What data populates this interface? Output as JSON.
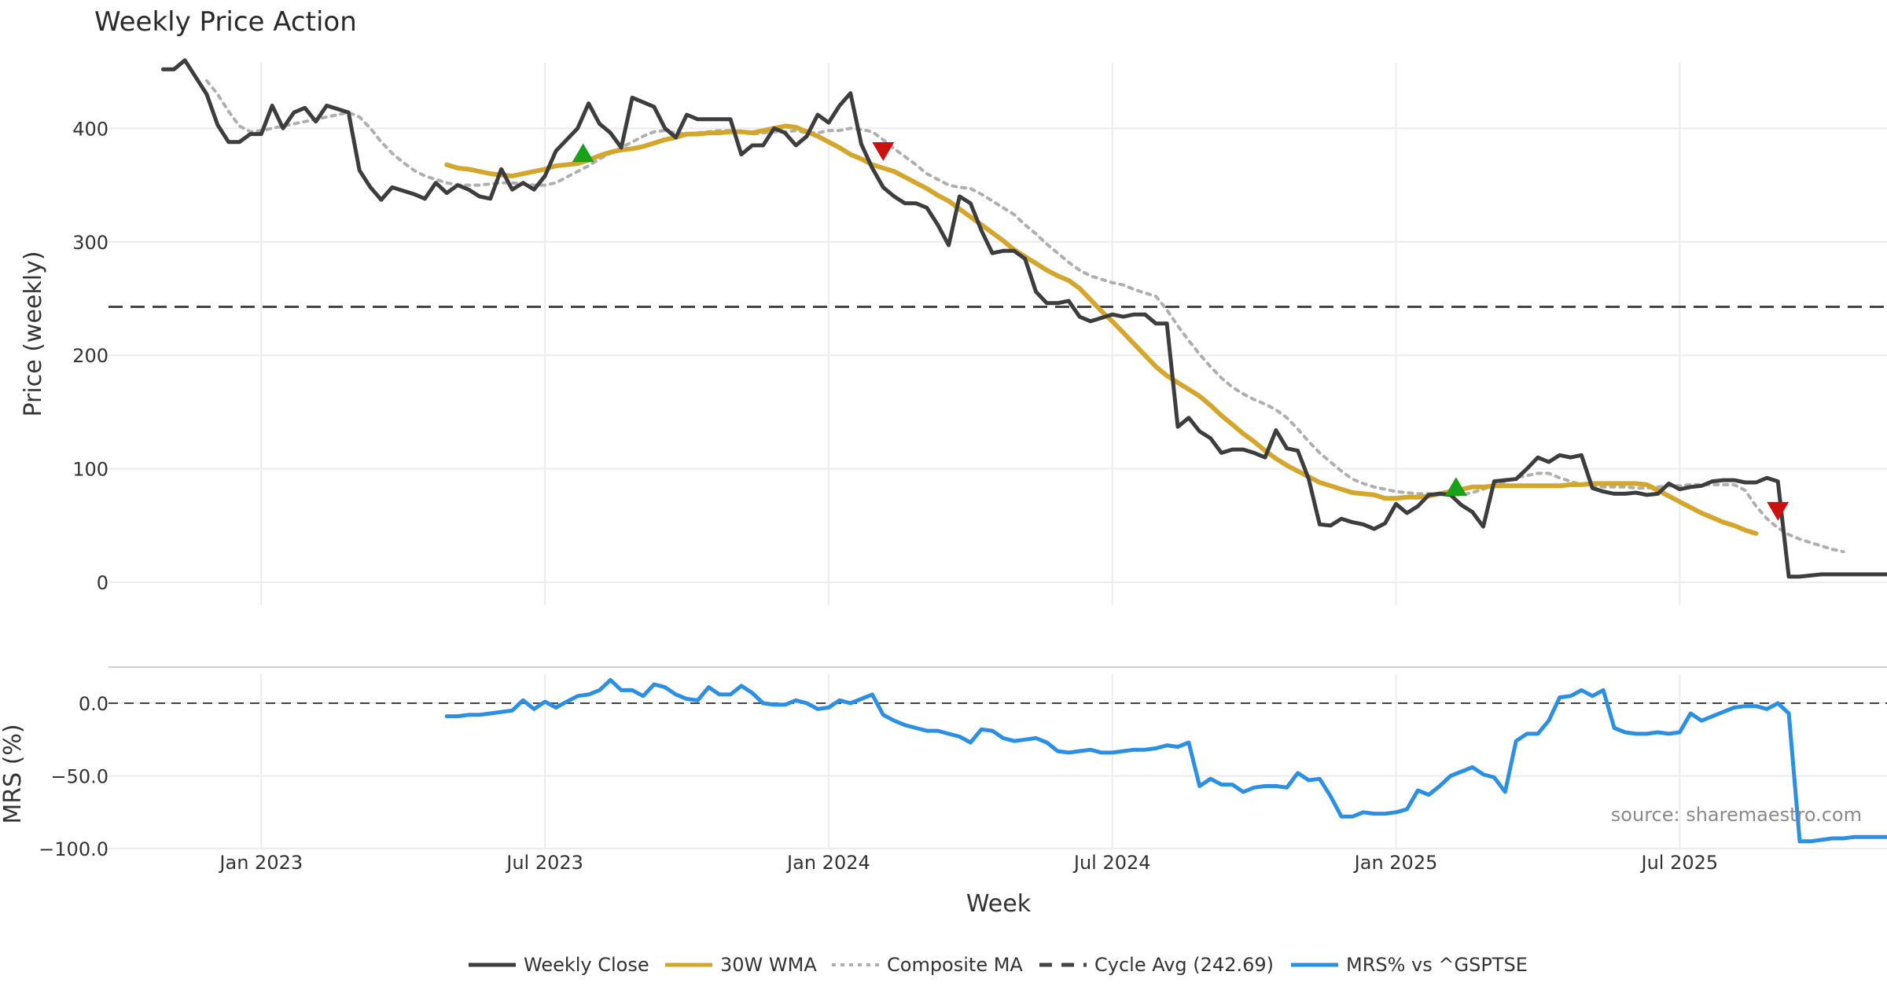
{
  "chart_data": {
    "type": "line",
    "title": "Weekly Price Action",
    "source": "source: sharemaestro.com",
    "xlabel": "Week",
    "x_ticks": [
      "Jan 2023",
      "Jul 2023",
      "Jan 2024",
      "Jul 2024",
      "Jan 2025",
      "Jul 2025"
    ],
    "x_range_weeks": [
      -14,
      149
    ],
    "tick_weeks": [
      0,
      26,
      52,
      78,
      104,
      130
    ],
    "price_panel": {
      "ylabel": "Price (weekly)",
      "ylim": [
        -20,
        475
      ],
      "yticks": [
        0,
        100,
        200,
        300,
        400
      ],
      "cycle_avg": 242.69,
      "series": [
        {
          "name": "Weekly Close",
          "color": "#3d3d3d",
          "start_week": -9,
          "values": [
            452,
            452,
            460,
            445,
            430,
            403,
            388,
            388,
            395,
            395,
            420,
            400,
            414,
            418,
            406,
            420,
            417,
            414,
            363,
            348,
            337,
            348,
            345,
            342,
            338,
            352,
            343,
            350,
            346,
            340,
            338,
            364,
            346,
            352,
            346,
            358,
            380,
            390,
            400,
            422,
            404,
            396,
            383,
            427,
            423,
            419,
            400,
            392,
            412,
            408,
            408,
            408,
            408,
            377,
            385,
            385,
            400,
            396,
            385,
            393,
            412,
            405,
            420,
            431,
            386,
            365,
            348,
            340,
            334,
            334,
            330,
            315,
            297,
            340,
            334,
            310,
            290,
            292,
            292,
            285,
            256,
            246,
            246,
            248,
            234,
            230,
            233,
            236,
            234,
            236,
            236,
            228,
            228,
            137,
            145,
            133,
            127,
            114,
            117,
            117,
            114,
            110,
            134,
            118,
            116,
            91,
            51,
            50,
            56,
            53,
            51,
            47,
            52,
            69,
            61,
            67,
            77,
            78,
            77,
            68,
            62,
            49,
            89,
            90,
            91,
            100,
            110,
            106,
            112,
            110,
            112,
            83,
            80,
            78,
            78,
            79,
            77,
            78,
            87,
            82,
            84,
            85,
            89,
            90,
            90,
            88,
            88,
            92,
            89,
            5,
            5,
            6,
            7,
            7,
            7,
            7,
            7,
            7,
            7
          ]
        },
        {
          "name": "30W WMA",
          "color": "#d4a72c",
          "start_week": 17,
          "values": [
            368,
            365,
            364,
            362,
            360,
            359,
            358,
            360,
            362,
            364,
            367,
            368,
            369,
            372,
            376,
            379,
            381,
            382,
            384,
            387,
            390,
            392,
            395,
            395,
            396,
            396,
            397,
            397,
            396,
            398,
            400,
            402,
            401,
            397,
            393,
            388,
            383,
            377,
            373,
            368,
            365,
            362,
            357,
            352,
            347,
            341,
            336,
            329,
            322,
            315,
            308,
            301,
            293,
            287,
            281,
            275,
            270,
            266,
            259,
            249,
            239,
            230,
            220,
            210,
            200,
            190,
            182,
            176,
            170,
            164,
            156,
            147,
            139,
            131,
            124,
            116,
            109,
            103,
            98,
            93,
            88,
            85,
            82,
            79,
            78,
            77,
            74,
            74,
            75,
            75,
            76,
            78,
            80,
            82,
            84,
            84,
            85,
            85,
            85,
            85,
            85,
            85,
            85,
            86,
            86,
            87,
            87,
            87,
            87,
            87,
            86,
            81,
            76,
            71,
            66,
            61,
            57,
            53,
            50,
            46,
            43
          ]
        },
        {
          "name": "Composite MA",
          "color": "#b0aeae",
          "start_week": -5,
          "values": [
            442,
            430,
            415,
            402,
            397,
            398,
            400,
            402,
            404,
            406,
            408,
            410,
            412,
            414,
            410,
            400,
            388,
            378,
            370,
            363,
            358,
            355,
            352,
            350,
            350,
            350,
            351,
            352,
            352,
            351,
            350,
            350,
            352,
            357,
            362,
            367,
            373,
            378,
            383,
            388,
            393,
            397,
            398,
            396,
            395,
            396,
            397,
            398,
            398,
            397,
            395,
            396,
            397,
            397,
            398,
            396,
            396,
            398,
            398,
            400,
            399,
            397,
            390,
            382,
            375,
            368,
            360,
            355,
            350,
            348,
            347,
            342,
            336,
            330,
            324,
            315,
            307,
            298,
            290,
            282,
            275,
            270,
            267,
            264,
            262,
            258,
            255,
            252,
            240,
            226,
            213,
            201,
            190,
            180,
            172,
            166,
            161,
            157,
            152,
            145,
            135,
            124,
            114,
            106,
            98,
            91,
            87,
            84,
            82,
            80,
            79,
            78,
            78,
            78,
            77,
            77,
            79,
            82,
            86,
            89,
            92,
            94,
            96,
            96,
            92,
            89,
            86,
            85,
            84,
            84,
            84,
            83,
            83,
            84,
            85,
            85,
            86,
            86,
            86,
            86,
            86,
            81,
            67,
            56,
            48,
            42,
            38,
            35,
            32,
            29,
            27
          ]
        }
      ],
      "markers": [
        {
          "type": "buy",
          "week": 29.5,
          "value": 378,
          "color": "#1aa11a"
        },
        {
          "type": "sell",
          "week": 57,
          "value": 380,
          "color": "#cc1111"
        },
        {
          "type": "buy",
          "week": 109.5,
          "value": 84,
          "color": "#1aa11a"
        },
        {
          "type": "sell",
          "week": 139,
          "value": 63,
          "color": "#cc1111"
        }
      ]
    },
    "mrs_panel": {
      "ylabel": "MRS (%)",
      "ylim": [
        -100,
        20
      ],
      "yticks": [
        0.0,
        -50.0,
        -100.0
      ],
      "ytick_labels": [
        "0.0",
        "−50.0",
        "−100.0"
      ],
      "zero_line": 0,
      "series": {
        "name": "MRS% vs ^GSPTSE",
        "color": "#2b8fe3",
        "start_week": 17,
        "values": [
          -9,
          -9,
          -8,
          -8,
          -7,
          -6,
          -5,
          2,
          -4,
          1,
          -3,
          1,
          5,
          6,
          9,
          16,
          9,
          9,
          5,
          13,
          11,
          6,
          3,
          2,
          11,
          6,
          6,
          12,
          7,
          0,
          -1,
          -1,
          2,
          0,
          -4,
          -3,
          2,
          0,
          3,
          6,
          -8,
          -12,
          -15,
          -17,
          -19,
          -19,
          -21,
          -23,
          -27,
          -18,
          -19,
          -24,
          -26,
          -25,
          -24,
          -27,
          -33,
          -34,
          -33,
          -32,
          -34,
          -34,
          -33,
          -32,
          -32,
          -31,
          -29,
          -30,
          -27,
          -57,
          -52,
          -56,
          -56,
          -61,
          -58,
          -57,
          -57,
          -58,
          -48,
          -53,
          -52,
          -64,
          -78,
          -78,
          -75,
          -76,
          -76,
          -75,
          -73,
          -60,
          -63,
          -57,
          -50,
          -47,
          -44,
          -49,
          -51,
          -61,
          -26,
          -21,
          -21,
          -12,
          4,
          5,
          9,
          5,
          9,
          -17,
          -20,
          -21,
          -21,
          -20,
          -21,
          -20,
          -7,
          -12,
          -9,
          -6,
          -3,
          -2,
          -2,
          -4,
          0,
          -7,
          -95,
          -95,
          -94,
          -93,
          -93,
          -92,
          -92,
          -92,
          -92,
          -92
        ]
      }
    },
    "legend": [
      {
        "label": "Weekly Close",
        "color": "#3d3d3d",
        "style": "solid"
      },
      {
        "label": "30W WMA",
        "color": "#d4a72c",
        "style": "solid"
      },
      {
        "label": "Composite MA",
        "color": "#b0aeae",
        "style": "dotted"
      },
      {
        "label": "Cycle Avg (242.69)",
        "color": "#444444",
        "style": "dashed"
      },
      {
        "label": "MRS% vs ^GSPTSE",
        "color": "#2b8fe3",
        "style": "solid"
      }
    ]
  }
}
